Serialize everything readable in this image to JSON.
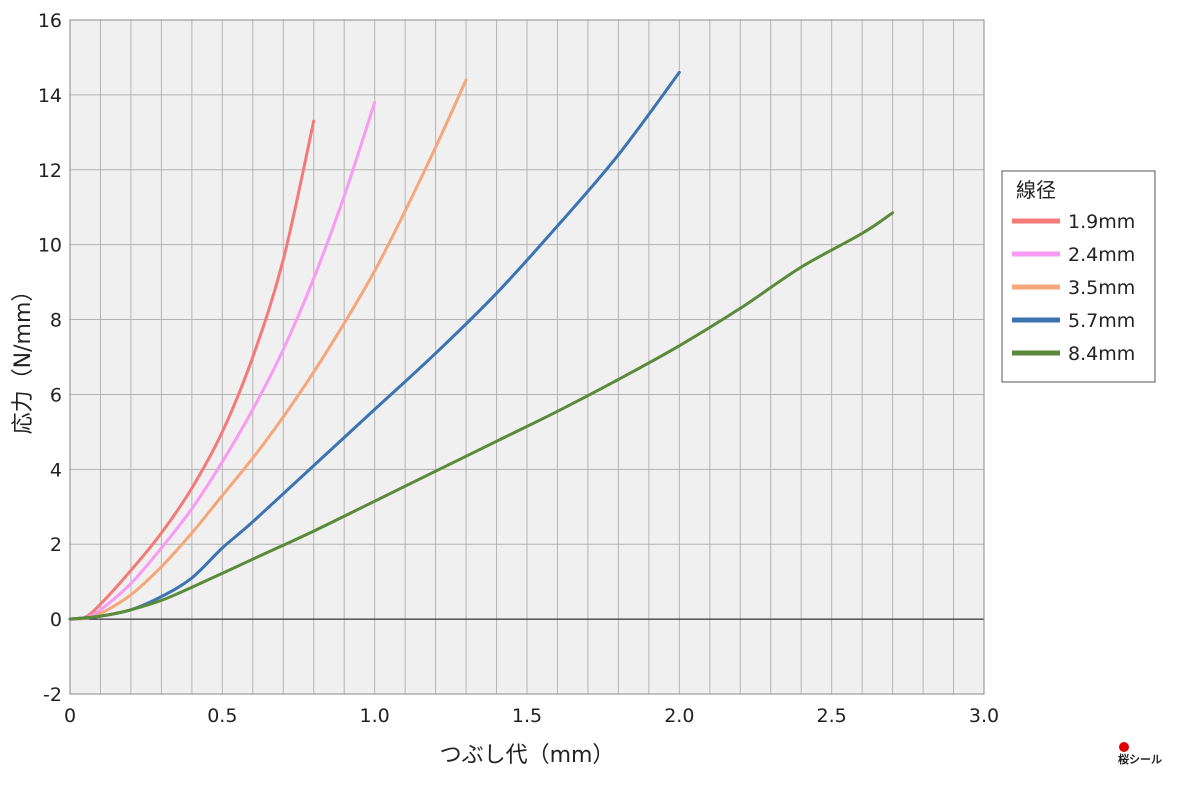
{
  "chart_data": {
    "type": "line",
    "title": "",
    "xlabel": "つぶし代（mm）",
    "ylabel": "応力（N/mm）",
    "xlim": [
      0,
      3.0
    ],
    "ylim": [
      -2,
      16
    ],
    "x_ticks": [
      "0",
      "0.5",
      "1.0",
      "1.5",
      "2.0",
      "2.5",
      "3.0"
    ],
    "y_ticks": [
      "-2",
      "0",
      "2",
      "4",
      "6",
      "8",
      "10",
      "12",
      "14",
      "16"
    ],
    "grid": true,
    "legend": {
      "title": "線径",
      "placement": "right"
    },
    "series": [
      {
        "name": "1.9mm",
        "color": "#f47a78",
        "points": [
          [
            0,
            0
          ],
          [
            0.05,
            0.05
          ],
          [
            0.1,
            0.4
          ],
          [
            0.2,
            1.3
          ],
          [
            0.3,
            2.3
          ],
          [
            0.4,
            3.5
          ],
          [
            0.5,
            5.0
          ],
          [
            0.6,
            7.0
          ],
          [
            0.7,
            9.6
          ],
          [
            0.8,
            13.3
          ]
        ]
      },
      {
        "name": "2.4mm",
        "color": "#f99af4",
        "points": [
          [
            0,
            0
          ],
          [
            0.05,
            0.03
          ],
          [
            0.1,
            0.25
          ],
          [
            0.2,
            0.95
          ],
          [
            0.3,
            1.9
          ],
          [
            0.4,
            2.95
          ],
          [
            0.5,
            4.2
          ],
          [
            0.6,
            5.6
          ],
          [
            0.7,
            7.2
          ],
          [
            0.8,
            9.1
          ],
          [
            0.9,
            11.3
          ],
          [
            1.0,
            13.8
          ]
        ]
      },
      {
        "name": "3.5mm",
        "color": "#f5a77a",
        "points": [
          [
            0,
            0
          ],
          [
            0.05,
            0.02
          ],
          [
            0.1,
            0.15
          ],
          [
            0.2,
            0.65
          ],
          [
            0.3,
            1.4
          ],
          [
            0.4,
            2.3
          ],
          [
            0.5,
            3.3
          ],
          [
            0.6,
            4.3
          ],
          [
            0.7,
            5.4
          ],
          [
            0.8,
            6.6
          ],
          [
            0.9,
            7.9
          ],
          [
            1.0,
            9.3
          ],
          [
            1.1,
            10.9
          ],
          [
            1.2,
            12.6
          ],
          [
            1.3,
            14.4
          ]
        ]
      },
      {
        "name": "5.7mm",
        "color": "#3c74b3",
        "points": [
          [
            0,
            0
          ],
          [
            0.1,
            0.08
          ],
          [
            0.2,
            0.25
          ],
          [
            0.3,
            0.6
          ],
          [
            0.4,
            1.1
          ],
          [
            0.5,
            1.9
          ],
          [
            0.6,
            2.6
          ],
          [
            0.8,
            4.1
          ],
          [
            1.0,
            5.6
          ],
          [
            1.2,
            7.1
          ],
          [
            1.4,
            8.7
          ],
          [
            1.6,
            10.5
          ],
          [
            1.8,
            12.4
          ],
          [
            2.0,
            14.6
          ]
        ]
      },
      {
        "name": "8.4mm",
        "color": "#5a8a3a",
        "points": [
          [
            0,
            0
          ],
          [
            0.1,
            0.08
          ],
          [
            0.2,
            0.25
          ],
          [
            0.3,
            0.5
          ],
          [
            0.4,
            0.85
          ],
          [
            0.6,
            1.6
          ],
          [
            0.8,
            2.35
          ],
          [
            1.0,
            3.15
          ],
          [
            1.2,
            3.95
          ],
          [
            1.4,
            4.75
          ],
          [
            1.6,
            5.55
          ],
          [
            1.8,
            6.4
          ],
          [
            2.0,
            7.3
          ],
          [
            2.2,
            8.3
          ],
          [
            2.4,
            9.4
          ],
          [
            2.6,
            10.3
          ],
          [
            2.7,
            10.85
          ]
        ]
      }
    ]
  },
  "logo": {
    "text": "桜シール"
  }
}
